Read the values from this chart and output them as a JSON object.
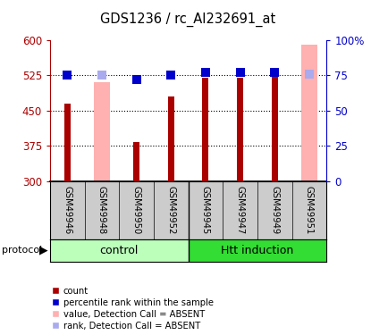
{
  "title": "GDS1236 / rc_AI232691_at",
  "samples": [
    "GSM49946",
    "GSM49948",
    "GSM49950",
    "GSM49952",
    "GSM49945",
    "GSM49947",
    "GSM49949",
    "GSM49951"
  ],
  "red_bars": [
    465,
    null,
    383,
    480,
    520,
    520,
    525,
    null
  ],
  "pink_bars": [
    null,
    510,
    null,
    null,
    null,
    null,
    null,
    590
  ],
  "blue_squares": [
    75.5,
    null,
    72,
    75.5,
    77,
    77,
    77,
    null
  ],
  "light_blue_squares": [
    null,
    75.5,
    null,
    null,
    null,
    null,
    null,
    76
  ],
  "ylim_left": [
    300,
    600
  ],
  "ylim_right": [
    0,
    100
  ],
  "yticks_left": [
    300,
    375,
    450,
    525,
    600
  ],
  "ytick_labels_left": [
    "300",
    "375",
    "450",
    "525",
    "600"
  ],
  "yticks_right": [
    0,
    25,
    50,
    75,
    100
  ],
  "ytick_labels_right": [
    "0",
    "25",
    "50",
    "75",
    "100%"
  ],
  "red_color": "#aa0000",
  "pink_color": "#ffb0b0",
  "blue_color": "#0000cc",
  "light_blue_color": "#aaaaee",
  "control_color": "#bbffbb",
  "htt_color": "#33dd33",
  "sample_bg": "#cccccc",
  "bar_width": 0.45,
  "red_bar_width": 0.18,
  "sq_size": 7
}
